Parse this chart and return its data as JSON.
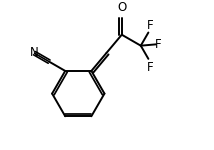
{
  "bg_color": "#ffffff",
  "line_color": "#000000",
  "lw": 1.4,
  "fs": 8.5,
  "xlim": [
    0.0,
    1.0
  ],
  "ylim": [
    0.05,
    0.85
  ]
}
